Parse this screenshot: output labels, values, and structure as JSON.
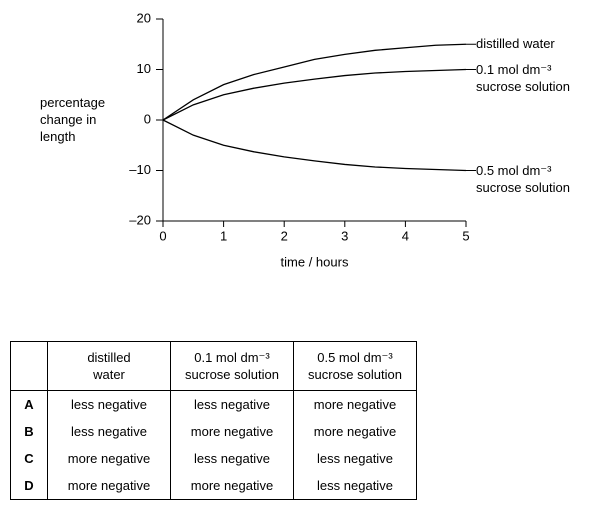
{
  "chart_data": {
    "type": "line",
    "y_label": "percentage change in length",
    "x_label": "time / hours",
    "x": [
      0,
      0.5,
      1,
      1.5,
      2,
      2.5,
      3,
      3.5,
      4,
      4.5,
      5
    ],
    "series": [
      {
        "name": "distilled water",
        "color": "#000000",
        "values": [
          0,
          4,
          7,
          9,
          10.5,
          12,
          13,
          13.8,
          14.3,
          14.8,
          15
        ]
      },
      {
        "name": "0.1 mol dm⁻³ sucrose solution",
        "color": "#000000",
        "values": [
          0,
          3,
          5,
          6.3,
          7.3,
          8.1,
          8.8,
          9.3,
          9.6,
          9.8,
          10
        ]
      },
      {
        "name": "0.5 mol dm⁻³ sucrose solution",
        "color": "#000000",
        "values": [
          0,
          -3,
          -5,
          -6.3,
          -7.3,
          -8.1,
          -8.8,
          -9.3,
          -9.6,
          -9.8,
          -10
        ]
      }
    ],
    "xlim": [
      0,
      5
    ],
    "xticks": [
      0,
      1,
      2,
      3,
      4,
      5
    ],
    "ylim": [
      -20,
      20
    ],
    "yticks": [
      {
        "value": -20,
        "label": "–20"
      },
      {
        "value": -10,
        "label": "–10"
      },
      0,
      10,
      20
    ],
    "grid": false
  },
  "table": {
    "header": [
      "distilled water",
      "0.1 mol dm⁻³ sucrose solution",
      "0.5 mol dm⁻³ sucrose solution"
    ],
    "rows": [
      [
        "A",
        "less negative",
        "less negative",
        "more negative"
      ],
      [
        "B",
        "less negative",
        "more negative",
        "more negative"
      ],
      [
        "C",
        "more negative",
        "less negative",
        "less negative"
      ],
      [
        "D",
        "more negative",
        "more negative",
        "less negative"
      ]
    ]
  }
}
